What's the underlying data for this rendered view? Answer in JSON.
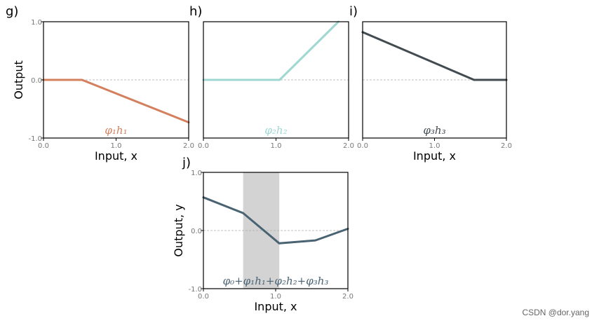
{
  "colors": {
    "g": "#d4805f",
    "h": "#9fd8d2",
    "i": "#424b50",
    "j": "#4a6373",
    "axis": "#000000",
    "grid": "#aaaaaa",
    "shade": "#d3d3d3"
  },
  "watermark": "CSDN @dor.yang",
  "chart_data": [
    {
      "type": "line",
      "panel_label": "g)",
      "label": "φ₁h₁",
      "xlabel": "Input, x",
      "ylabel": "Output",
      "xlim": [
        0,
        2
      ],
      "ylim": [
        -1,
        1
      ],
      "xticks": [
        "0.0",
        "1.0",
        "2.0"
      ],
      "yticks": [
        "1.0",
        "0.0",
        "-1.0"
      ],
      "dashed_zero": true,
      "series": [
        {
          "x": [
            0,
            0.53,
            2.0
          ],
          "y": [
            0,
            0,
            -0.73
          ]
        }
      ]
    },
    {
      "type": "line",
      "panel_label": "h)",
      "label": "φ₂h₂",
      "xlabel": "",
      "ylabel": "",
      "xlim": [
        0,
        2
      ],
      "ylim": [
        -1,
        1
      ],
      "xticks": [
        "0.0",
        "1.0",
        "2.0"
      ],
      "yticks": [],
      "dashed_zero": true,
      "series": [
        {
          "x": [
            0,
            1.05,
            1.86
          ],
          "y": [
            0,
            0,
            1.0
          ]
        }
      ]
    },
    {
      "type": "line",
      "panel_label": "i)",
      "label": "φ₃h₃",
      "xlabel": "Input, x",
      "ylabel": "",
      "xlim": [
        0,
        2
      ],
      "ylim": [
        -1,
        1
      ],
      "xticks": [
        "0.0",
        "1.0",
        "2.0"
      ],
      "yticks": [],
      "dashed_zero": true,
      "series": [
        {
          "x": [
            0,
            1.55,
            2.0
          ],
          "y": [
            0.82,
            0,
            0
          ]
        }
      ]
    },
    {
      "type": "line",
      "panel_label": "j)",
      "label": "φ₀+φ₁h₁+φ₂h₂+φ₃h₃",
      "xlabel": "Input, x",
      "ylabel": "Output, y",
      "xlim": [
        0,
        2
      ],
      "ylim": [
        -1,
        1
      ],
      "xticks": [
        "0.0",
        "1.0",
        "2.0"
      ],
      "yticks": [
        "1.0",
        "0.0",
        "-1.0"
      ],
      "dashed_zero": true,
      "shaded_x": [
        0.55,
        1.05
      ],
      "series": [
        {
          "x": [
            0,
            0.55,
            1.05,
            1.55,
            2.0
          ],
          "y": [
            0.57,
            0.3,
            -0.22,
            -0.17,
            0.03
          ]
        }
      ]
    }
  ]
}
